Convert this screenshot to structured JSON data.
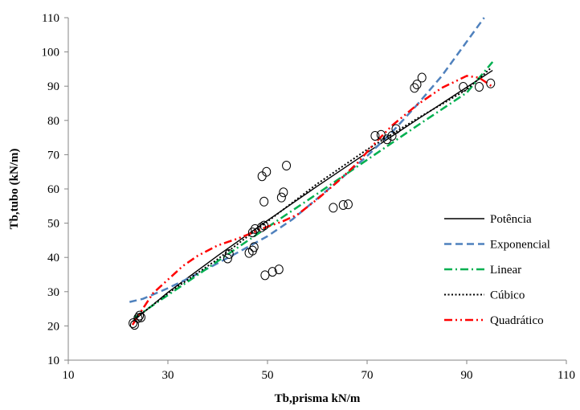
{
  "chart_data": {
    "type": "scatter",
    "xlabel": "Tb,prisma kN/m",
    "ylabel": "Tb,tubo (kN/m)",
    "xlim": [
      10,
      110
    ],
    "ylim": [
      10,
      110
    ],
    "xticks": [
      10,
      30,
      50,
      70,
      90,
      110
    ],
    "yticks": [
      10,
      20,
      30,
      40,
      50,
      60,
      70,
      80,
      90,
      100,
      110
    ],
    "grid": false,
    "legend_position": "right",
    "points": [
      {
        "x": 23.0,
        "y": 20.8
      },
      {
        "x": 23.3,
        "y": 20.3
      },
      {
        "x": 24.0,
        "y": 22.3
      },
      {
        "x": 24.3,
        "y": 23.0
      },
      {
        "x": 24.6,
        "y": 22.5
      },
      {
        "x": 42.0,
        "y": 39.7
      },
      {
        "x": 42.3,
        "y": 41.0
      },
      {
        "x": 46.3,
        "y": 41.3
      },
      {
        "x": 47.0,
        "y": 42.0
      },
      {
        "x": 47.3,
        "y": 43.0
      },
      {
        "x": 47.0,
        "y": 47.3
      },
      {
        "x": 47.5,
        "y": 48.3
      },
      {
        "x": 48.8,
        "y": 48.8
      },
      {
        "x": 49.3,
        "y": 49.3
      },
      {
        "x": 48.9,
        "y": 63.7
      },
      {
        "x": 49.8,
        "y": 65.0
      },
      {
        "x": 49.3,
        "y": 56.3
      },
      {
        "x": 49.5,
        "y": 34.8
      },
      {
        "x": 51.0,
        "y": 35.8
      },
      {
        "x": 52.3,
        "y": 36.5
      },
      {
        "x": 52.8,
        "y": 57.5
      },
      {
        "x": 53.2,
        "y": 59.0
      },
      {
        "x": 53.8,
        "y": 66.8
      },
      {
        "x": 63.2,
        "y": 54.5
      },
      {
        "x": 65.2,
        "y": 55.3
      },
      {
        "x": 66.2,
        "y": 55.5
      },
      {
        "x": 71.6,
        "y": 75.5
      },
      {
        "x": 72.8,
        "y": 75.8
      },
      {
        "x": 74.0,
        "y": 74.5
      },
      {
        "x": 75.0,
        "y": 75.5
      },
      {
        "x": 75.8,
        "y": 77.5
      },
      {
        "x": 79.5,
        "y": 89.5
      },
      {
        "x": 80.0,
        "y": 90.5
      },
      {
        "x": 81.0,
        "y": 92.5
      },
      {
        "x": 89.3,
        "y": 89.8
      },
      {
        "x": 92.5,
        "y": 89.8
      },
      {
        "x": 94.8,
        "y": 90.8
      }
    ],
    "series": [
      {
        "name": "Potência",
        "color": "#000000",
        "style": "solid",
        "x": [
          22.9,
          30,
          40,
          50,
          60,
          70,
          80,
          90,
          95.2
        ],
        "y": [
          21.3,
          29.8,
          40.5,
          50.8,
          60.8,
          70.6,
          80.2,
          89.7,
          94.6
        ]
      },
      {
        "name": "Exponencial",
        "color": "#4f81bd",
        "style": "dashed",
        "x": [
          22.3,
          25,
          30,
          35,
          40,
          45,
          50,
          55,
          60,
          65,
          70,
          75,
          80,
          85,
          90,
          93.5
        ],
        "y": [
          27.0,
          27.9,
          31.0,
          34.5,
          38.3,
          42.2,
          46.2,
          51.1,
          57.2,
          63.3,
          69.6,
          76.6,
          84.5,
          93.0,
          103.0,
          110.0
        ]
      },
      {
        "name": "Linear",
        "color": "#00b050",
        "style": "dashdot",
        "x": [
          23.3,
          30,
          40,
          50,
          60,
          70,
          80,
          90,
          95.2
        ],
        "y": [
          22.4,
          29.0,
          38.9,
          48.8,
          58.6,
          68.5,
          78.4,
          88.1,
          97.1
        ]
      },
      {
        "name": "Cúbico",
        "color": "#000000",
        "style": "dotted",
        "x": [
          23.3,
          30,
          40,
          50,
          60,
          70,
          80,
          90,
          95.0
        ],
        "y": [
          22.0,
          29.5,
          39.5,
          50.5,
          61.5,
          71.5,
          80.5,
          89.0,
          95.5
        ]
      },
      {
        "name": "Quadrático",
        "color": "#ff0000",
        "style": "dashdotdot",
        "x": [
          22.9,
          24.5,
          27,
          30,
          33,
          36,
          40,
          44,
          47,
          50,
          53,
          56,
          60,
          64,
          68,
          71,
          75,
          80,
          85,
          90,
          92.5,
          95.0
        ],
        "y": [
          20.3,
          24.0,
          29.5,
          33.5,
          37.5,
          40.5,
          43.5,
          45.5,
          47.2,
          49.0,
          50.5,
          52.5,
          57.0,
          62.0,
          67.5,
          72.5,
          78.5,
          84.5,
          89.5,
          93.0,
          92.5,
          90.0
        ]
      }
    ]
  }
}
